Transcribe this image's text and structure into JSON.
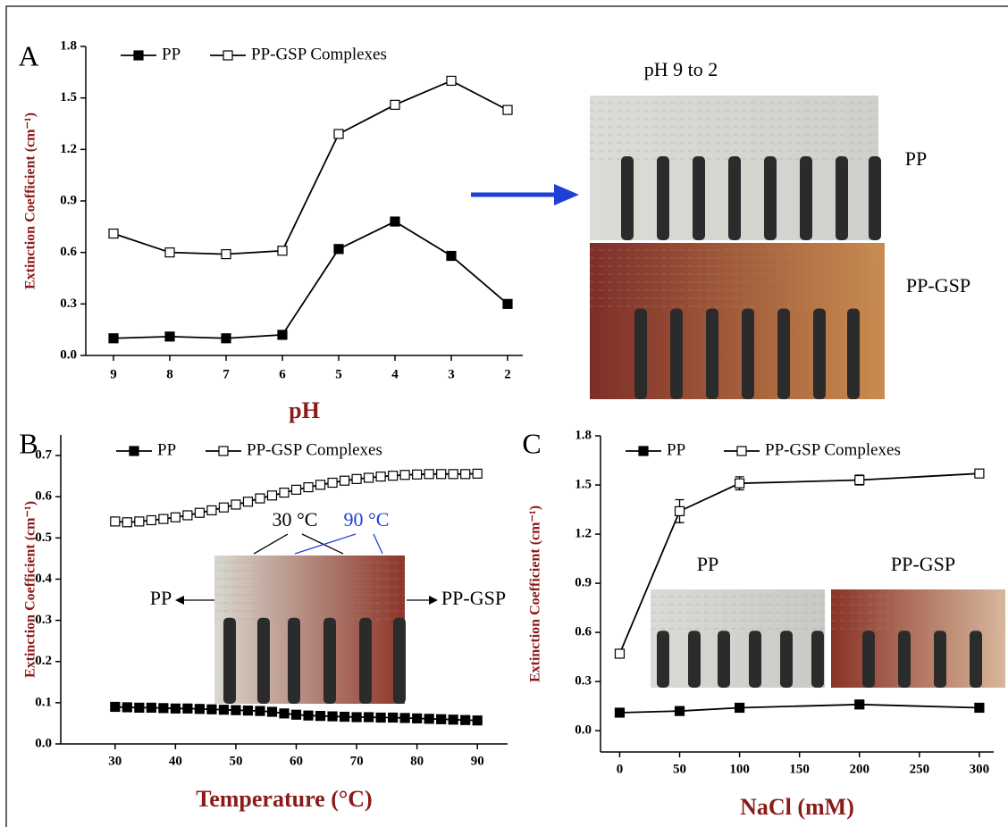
{
  "chart_data": [
    {
      "type": "line",
      "panel": "A",
      "xlabel": "pH",
      "ylabel": "Extinction Coefficient (cm⁻¹)",
      "categories": [
        "9",
        "8",
        "7",
        "6",
        "5",
        "4",
        "3",
        "2"
      ],
      "series": [
        {
          "name": "PP",
          "color": "#000000",
          "marker_fill": "#000000",
          "values": [
            0.1,
            0.11,
            0.1,
            0.12,
            0.62,
            0.78,
            0.58,
            0.3
          ]
        },
        {
          "name": "PP-GSP Complexes",
          "color": "#000000",
          "marker_fill": "#ffffff",
          "values": [
            0.71,
            0.6,
            0.59,
            0.61,
            1.29,
            1.46,
            1.6,
            1.43
          ]
        }
      ],
      "ylim": [
        0,
        1.8
      ],
      "yticks": [
        {
          "value": 0,
          "label": "0.0"
        },
        0.3,
        0.6,
        0.9,
        1.2,
        1.5,
        1.8
      ],
      "annotations": [
        "pH 9 to 2",
        "PP",
        "PP-GSP"
      ]
    },
    {
      "type": "line",
      "panel": "B",
      "xlabel": "Temperature (°C)",
      "ylabel": "Extinction Coefficient (cm⁻¹)",
      "x": [
        30,
        32,
        34,
        36,
        38,
        40,
        42,
        44,
        46,
        48,
        50,
        52,
        54,
        56,
        58,
        60,
        62,
        64,
        66,
        68,
        70,
        72,
        74,
        76,
        78,
        80,
        82,
        84,
        86,
        88,
        90
      ],
      "series": [
        {
          "name": "PP",
          "color": "#000000",
          "marker_fill": "#000000",
          "values": [
            0.09,
            0.089,
            0.088,
            0.088,
            0.087,
            0.086,
            0.086,
            0.085,
            0.084,
            0.083,
            0.082,
            0.081,
            0.08,
            0.078,
            0.074,
            0.071,
            0.069,
            0.068,
            0.067,
            0.066,
            0.065,
            0.065,
            0.064,
            0.064,
            0.063,
            0.062,
            0.061,
            0.06,
            0.059,
            0.058,
            0.057
          ]
        },
        {
          "name": "PP-GSP Complexes",
          "color": "#000000",
          "marker_fill": "#ffffff",
          "values": [
            0.54,
            0.538,
            0.54,
            0.543,
            0.546,
            0.55,
            0.555,
            0.561,
            0.567,
            0.574,
            0.581,
            0.588,
            0.596,
            0.603,
            0.61,
            0.617,
            0.623,
            0.629,
            0.634,
            0.639,
            0.643,
            0.646,
            0.649,
            0.651,
            0.653,
            0.654,
            0.655,
            0.655,
            0.655,
            0.655,
            0.656
          ]
        }
      ],
      "xlim": [
        21,
        95
      ],
      "xticks": [
        30,
        40,
        50,
        60,
        70,
        80,
        90
      ],
      "ylim": [
        0,
        0.75
      ],
      "yticks": [
        {
          "value": 0,
          "label": "0.0"
        },
        0.1,
        0.2,
        0.3,
        0.4,
        0.5,
        0.6,
        0.7
      ],
      "annotations": [
        "30 °C",
        "90 °C",
        "PP",
        "PP-GSP"
      ]
    },
    {
      "type": "line",
      "panel": "C",
      "xlabel": "NaCl (mM)",
      "ylabel": "Extinction Coefficient (cm⁻¹)",
      "x": [
        0,
        50,
        100,
        200,
        300
      ],
      "series": [
        {
          "name": "PP",
          "color": "#000000",
          "marker_fill": "#000000",
          "values": [
            0.11,
            0.12,
            0.14,
            0.16,
            0.14
          ]
        },
        {
          "name": "PP-GSP Complexes",
          "color": "#000000",
          "marker_fill": "#ffffff",
          "values": [
            0.47,
            1.34,
            1.51,
            1.53,
            1.57
          ],
          "errors": [
            0.02,
            0.07,
            0.04,
            0.03,
            0.02
          ]
        }
      ],
      "xlim": [
        -16,
        312
      ],
      "xticks": [
        0,
        50,
        100,
        150,
        200,
        250,
        300
      ],
      "ylim": [
        -0.13,
        1.8
      ],
      "yticks": [
        {
          "value": 0,
          "label": "0.0"
        },
        0.3,
        0.6,
        0.9,
        1.2,
        1.5,
        1.8
      ],
      "annotations": [
        "PP",
        "PP-GSP"
      ]
    }
  ]
}
